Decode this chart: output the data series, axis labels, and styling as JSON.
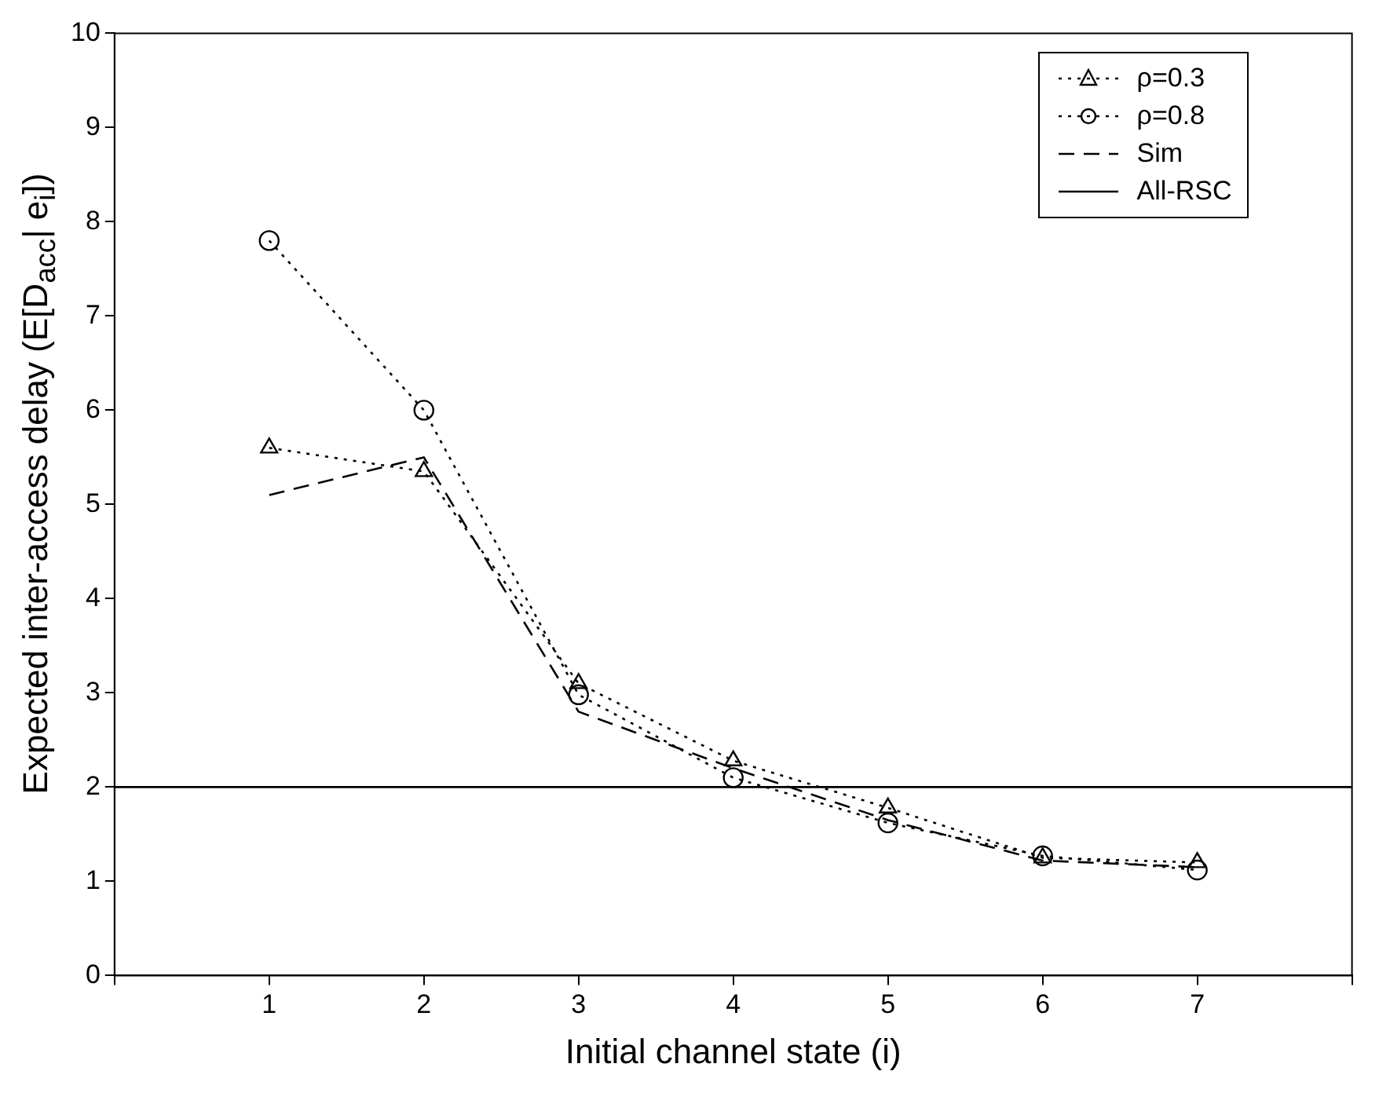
{
  "chart_data": {
    "type": "line",
    "xlabel": "Initial channel state (i)",
    "ylabel": "Expected inter-access delay (E[D$_{acc}$| e$_{i}$])",
    "xlim": [
      0,
      8
    ],
    "xticks": [
      {
        "value": 0,
        "label": null
      },
      1,
      2,
      3,
      4,
      5,
      6,
      7,
      {
        "value": 8,
        "label": null
      }
    ],
    "ylim": [
      0,
      10
    ],
    "yticks": [
      0,
      1,
      2,
      3,
      4,
      5,
      6,
      7,
      8,
      9,
      10
    ],
    "x": [
      1,
      2,
      3,
      4,
      5,
      6,
      7
    ],
    "series": [
      {
        "name": "ρ=0.3",
        "color": "#000000",
        "marker": "triangle",
        "line_style": "dotted",
        "values": [
          5.6,
          5.35,
          3.1,
          2.28,
          1.78,
          1.25,
          1.2
        ]
      },
      {
        "name": "ρ=0.8",
        "color": "#000000",
        "marker": "circle",
        "line_style": "dotted",
        "values": [
          7.8,
          6.0,
          2.98,
          2.1,
          1.62,
          1.27,
          1.12
        ]
      },
      {
        "name": "Sim",
        "color": "#000000",
        "marker": "none",
        "line_style": "dashed",
        "values": [
          5.1,
          5.5,
          2.8,
          2.2,
          1.65,
          1.22,
          1.15
        ]
      },
      {
        "name": "All-RSC",
        "color": "#000000",
        "marker": "none",
        "line_style": "solid",
        "x": [
          0,
          8
        ],
        "values": [
          2,
          2
        ]
      }
    ],
    "grid": false,
    "legend": "top right"
  }
}
